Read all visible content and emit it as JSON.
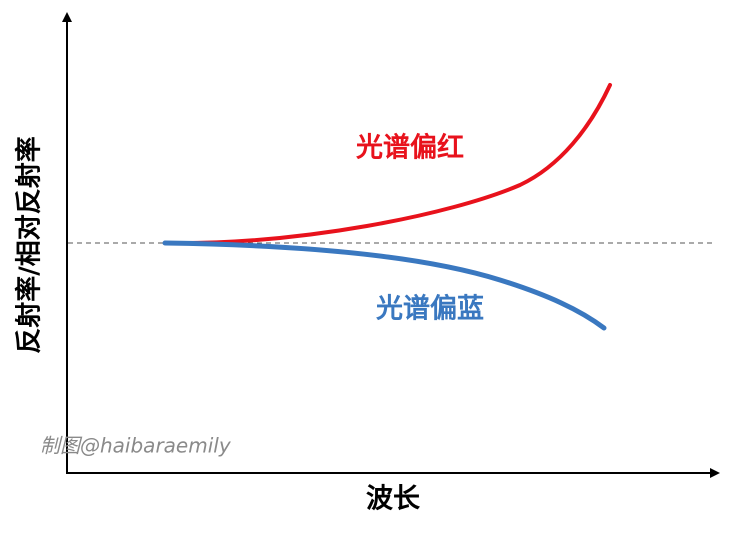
{
  "axes": {
    "y_label": "反射率/相对反射率",
    "x_label": "波长"
  },
  "annotations": {
    "red_shift": "光谱偏红",
    "blue_shift": "光谱偏蓝"
  },
  "watermark": "制图@haibaraemily"
}
